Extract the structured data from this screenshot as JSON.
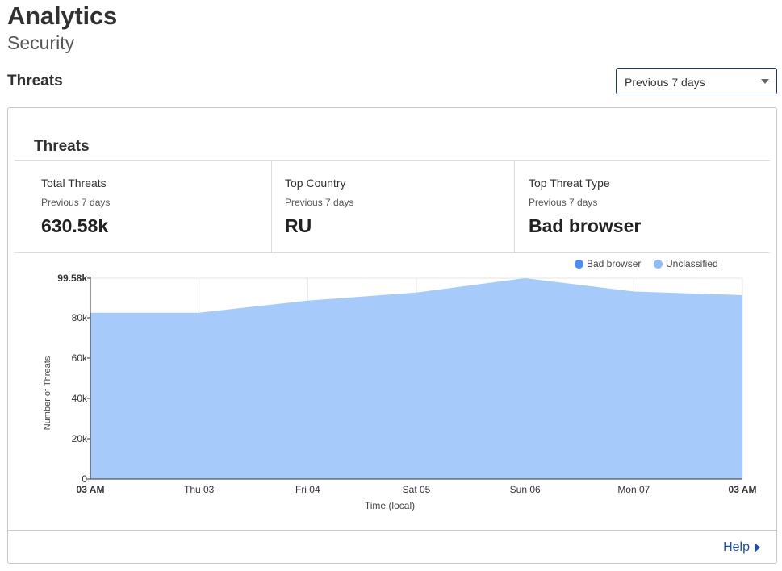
{
  "header": {
    "title": "Analytics",
    "subtitle": "Security",
    "section": "Threats"
  },
  "range_select": {
    "value": "Previous 7 days"
  },
  "card": {
    "title": "Threats",
    "stats": [
      {
        "label": "Total Threats",
        "period": "Previous 7 days",
        "value": "630.58k"
      },
      {
        "label": "Top Country",
        "period": "Previous 7 days",
        "value": "RU"
      },
      {
        "label": "Top Threat Type",
        "period": "Previous 7 days",
        "value": "Bad browser"
      }
    ],
    "help_label": "Help"
  },
  "chart_data": {
    "type": "area",
    "xlabel": "Time (local)",
    "ylabel": "Number of Threats",
    "ylim": [
      0,
      99580
    ],
    "yticks": [
      {
        "label": "0",
        "value": 0
      },
      {
        "label": "20k",
        "value": 20000
      },
      {
        "label": "40k",
        "value": 40000
      },
      {
        "label": "60k",
        "value": 60000
      },
      {
        "label": "80k",
        "value": 80000
      },
      {
        "label": "99.58k",
        "value": 99580
      }
    ],
    "x": [
      "03 AM",
      "Thu 03",
      "Fri 04",
      "Sat 05",
      "Sun 06",
      "Mon 07",
      "03 AM"
    ],
    "x_bold": [
      true,
      false,
      false,
      false,
      false,
      false,
      true
    ],
    "grid": true,
    "legend_position": "top-right",
    "series": [
      {
        "name": "Bad browser",
        "color": "#4a8ef0",
        "values": [
          82500,
          82500,
          88500,
          92500,
          99580,
          93000,
          91200
        ]
      },
      {
        "name": "Unclassified",
        "color": "#8fbbf7",
        "values": [
          0,
          0,
          0,
          0,
          0,
          0,
          0
        ]
      }
    ],
    "area_color": "#a6cafa"
  }
}
